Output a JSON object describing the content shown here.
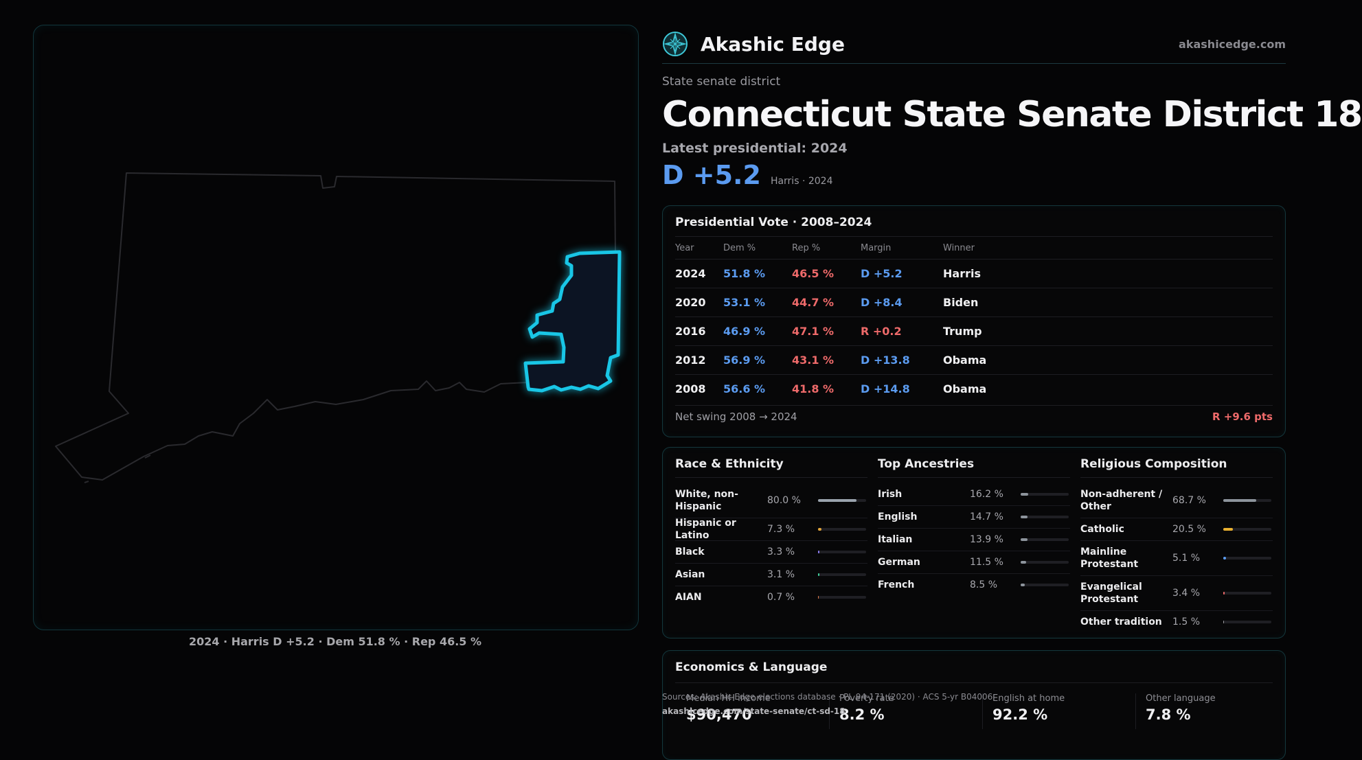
{
  "header": {
    "brand_name": "Akashic Edge",
    "site_url": "akashicedge.com",
    "logo_icon": "compass-star-icon"
  },
  "district": {
    "eyebrow": "State senate district",
    "title": "Connecticut State Senate District 18",
    "subhead": "Latest presidential: 2024",
    "margin": "D +5.2",
    "margin_note": "Harris · 2024"
  },
  "map": {
    "caption": "2024 · Harris D +5.2 · Dem 51.8 % · Rep 46.5 %",
    "highlight_color": "#19c6e6"
  },
  "presidential": {
    "title": "Presidential Vote · 2008–2024",
    "columns": {
      "year": "Year",
      "dem": "Dem %",
      "rep": "Rep %",
      "margin": "Margin",
      "winner": "Winner"
    },
    "rows": [
      {
        "year": "2024",
        "dem": "51.8 %",
        "rep": "46.5 %",
        "margin": "D +5.2",
        "party": "D",
        "winner": "Harris"
      },
      {
        "year": "2020",
        "dem": "53.1 %",
        "rep": "44.7 %",
        "margin": "D +8.4",
        "party": "D",
        "winner": "Biden"
      },
      {
        "year": "2016",
        "dem": "46.9 %",
        "rep": "47.1 %",
        "margin": "R +0.2",
        "party": "R",
        "winner": "Trump"
      },
      {
        "year": "2012",
        "dem": "56.9 %",
        "rep": "43.1 %",
        "margin": "D +13.8",
        "party": "D",
        "winner": "Obama"
      },
      {
        "year": "2008",
        "dem": "56.6 %",
        "rep": "41.8 %",
        "margin": "D +14.8",
        "party": "D",
        "winner": "Obama"
      }
    ],
    "swing_label": "Net swing 2008 → 2024",
    "swing_value": "R +9.6 pts"
  },
  "race": {
    "title": "Race & Ethnicity",
    "rows": [
      {
        "label": "White, non-Hispanic",
        "value": "80.0 %",
        "pct": 80.0,
        "color": "#9aa3ad"
      },
      {
        "label": "Hispanic or Latino",
        "value": "7.3 %",
        "pct": 7.3,
        "color": "#e0a43a"
      },
      {
        "label": "Black",
        "value": "3.3 %",
        "pct": 3.3,
        "color": "#8b7cf0"
      },
      {
        "label": "Asian",
        "value": "3.1 %",
        "pct": 3.1,
        "color": "#3fcf9a"
      },
      {
        "label": "AIAN",
        "value": "0.7 %",
        "pct": 0.7,
        "color": "#e07a4a"
      }
    ]
  },
  "ancestry": {
    "title": "Top Ancestries",
    "rows": [
      {
        "label": "Irish",
        "value": "16.2 %",
        "pct": 16.2,
        "color": "#8d949c"
      },
      {
        "label": "English",
        "value": "14.7 %",
        "pct": 14.7,
        "color": "#8d949c"
      },
      {
        "label": "Italian",
        "value": "13.9 %",
        "pct": 13.9,
        "color": "#8d949c"
      },
      {
        "label": "German",
        "value": "11.5 %",
        "pct": 11.5,
        "color": "#8d949c"
      },
      {
        "label": "French",
        "value": "8.5 %",
        "pct": 8.5,
        "color": "#8d949c"
      }
    ]
  },
  "religion": {
    "title": "Religious Composition",
    "rows": [
      {
        "label": "Non-adherent / Other",
        "value": "68.7 %",
        "pct": 68.7,
        "color": "#8d949c"
      },
      {
        "label": "Catholic",
        "value": "20.5 %",
        "pct": 20.5,
        "color": "#e8b030"
      },
      {
        "label": "Mainline Protestant",
        "value": "5.1 %",
        "pct": 5.1,
        "color": "#5b9bf0"
      },
      {
        "label": "Evangelical Protestant",
        "value": "3.4 %",
        "pct": 3.4,
        "color": "#ee6a6a"
      },
      {
        "label": "Other tradition",
        "value": "1.5 %",
        "pct": 1.5,
        "color": "#9a9aa0"
      }
    ]
  },
  "economics": {
    "title": "Economics & Language",
    "items": [
      {
        "label": "Median HH income",
        "value": "$90,470"
      },
      {
        "label": "Poverty rate",
        "value": "8.2 %"
      },
      {
        "label": "English at home",
        "value": "92.2 %"
      },
      {
        "label": "Other language",
        "value": "7.8 %"
      }
    ]
  },
  "sources": {
    "line1": "Sources: Akashic Edge elections database · PL 94-171 (2020) · ACS 5-yr B04006",
    "line2": "akashicedge.com/state-senate/ct-sd-18"
  }
}
